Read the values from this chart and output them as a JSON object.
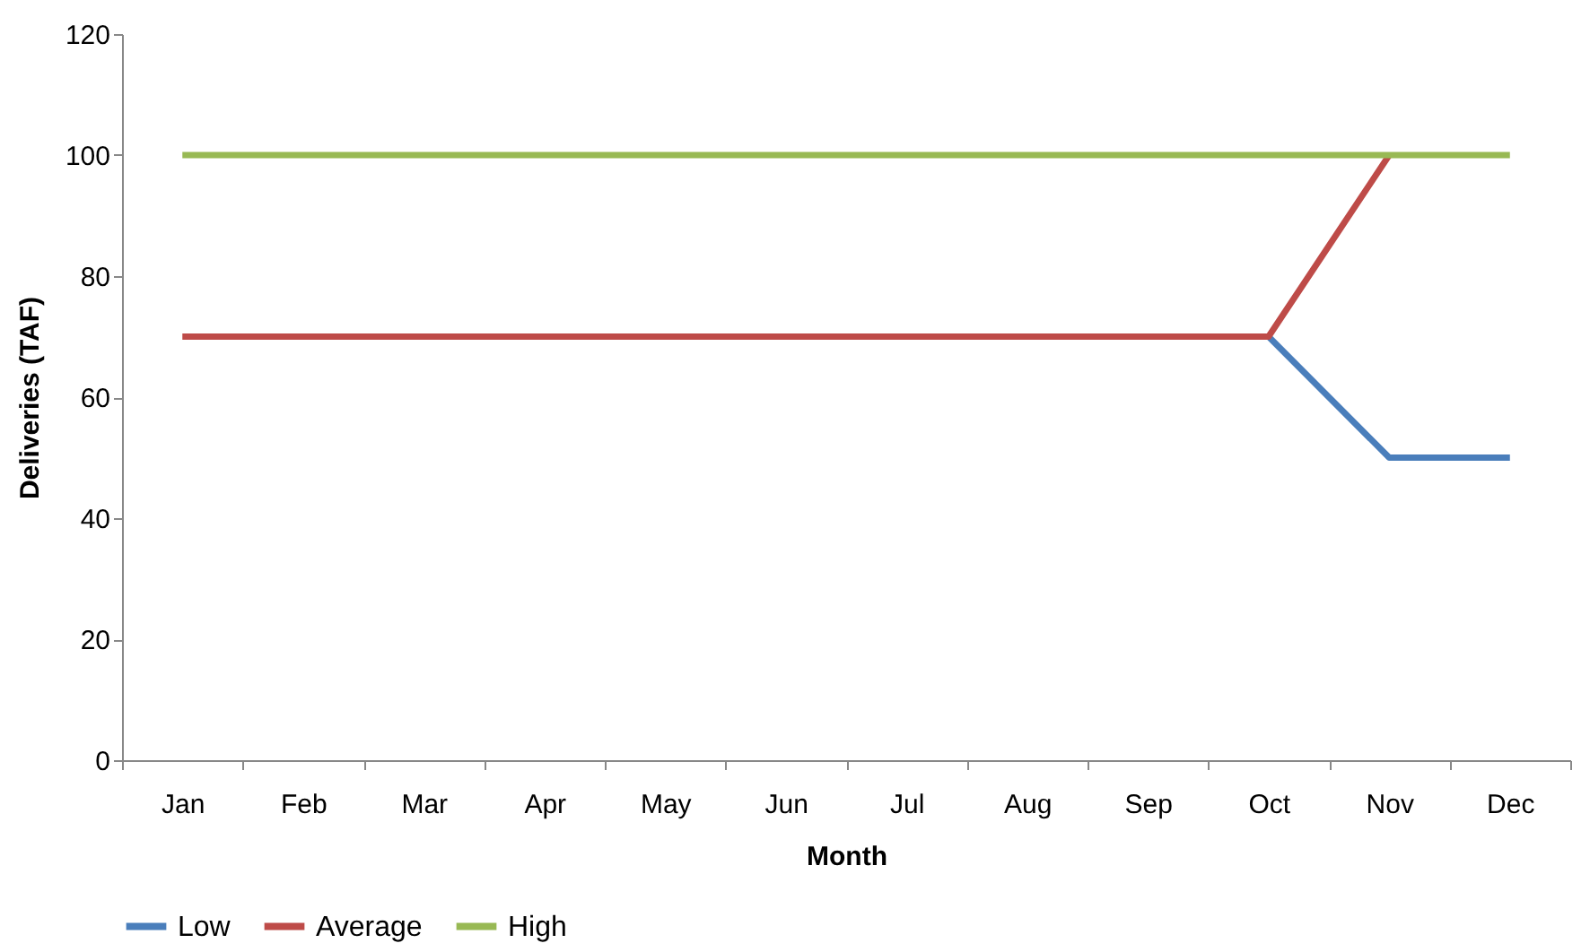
{
  "chart_data": {
    "type": "line",
    "xlabel": "Month",
    "ylabel": "Deliveries (TAF)",
    "categories": [
      "Jan",
      "Feb",
      "Mar",
      "Apr",
      "May",
      "Jun",
      "Jul",
      "Aug",
      "Sep",
      "Oct",
      "Nov",
      "Dec"
    ],
    "series": [
      {
        "name": "Low",
        "color": "#4a7ebb",
        "values": [
          null,
          null,
          null,
          null,
          null,
          null,
          null,
          null,
          null,
          70,
          50,
          50
        ]
      },
      {
        "name": "Average",
        "color": "#be4b48",
        "values": [
          70,
          70,
          70,
          70,
          70,
          70,
          70,
          70,
          70,
          70,
          100,
          null
        ]
      },
      {
        "name": "High",
        "color": "#98b954",
        "values": [
          100,
          100,
          100,
          100,
          100,
          100,
          100,
          100,
          100,
          100,
          100,
          100
        ]
      }
    ],
    "ylim": [
      0,
      120
    ],
    "yticks": [
      0,
      20,
      40,
      60,
      80,
      100,
      120
    ],
    "grid": false,
    "legend": "bottom",
    "marker": "none",
    "line_style": "solid"
  }
}
